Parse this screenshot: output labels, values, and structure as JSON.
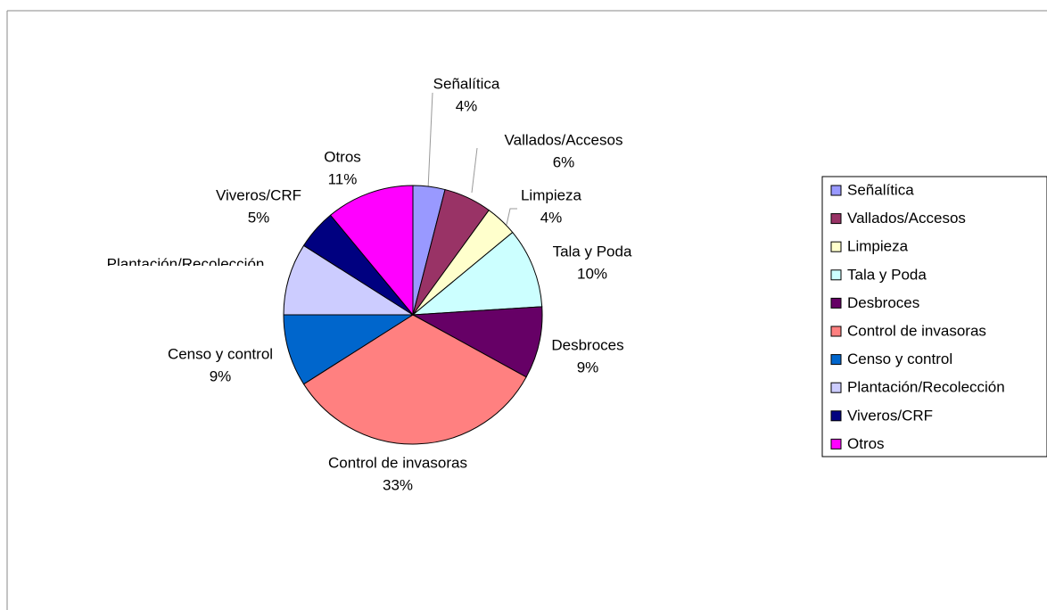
{
  "chart_data": {
    "type": "pie",
    "categories": [
      "Señalítica",
      "Vallados/Accesos",
      "Limpieza",
      "Tala y Poda",
      "Desbroces",
      "Control de invasoras",
      "Censo y control",
      "Plantación/Recolección",
      "Viveros/CRF",
      "Otros"
    ],
    "values": [
      4,
      6,
      4,
      10,
      9,
      33,
      9,
      9,
      5,
      11
    ],
    "value_labels": [
      "4%",
      "6%",
      "4%",
      "10%",
      "9%",
      "33%",
      "9%",
      null,
      "5%",
      "11%"
    ],
    "colors": [
      "#9999ff",
      "#993366",
      "#ffffcc",
      "#ccffff",
      "#660066",
      "#ff8080",
      "#0066cc",
      "#ccccff",
      "#000080",
      "#ff00ff"
    ],
    "legend": "right"
  }
}
